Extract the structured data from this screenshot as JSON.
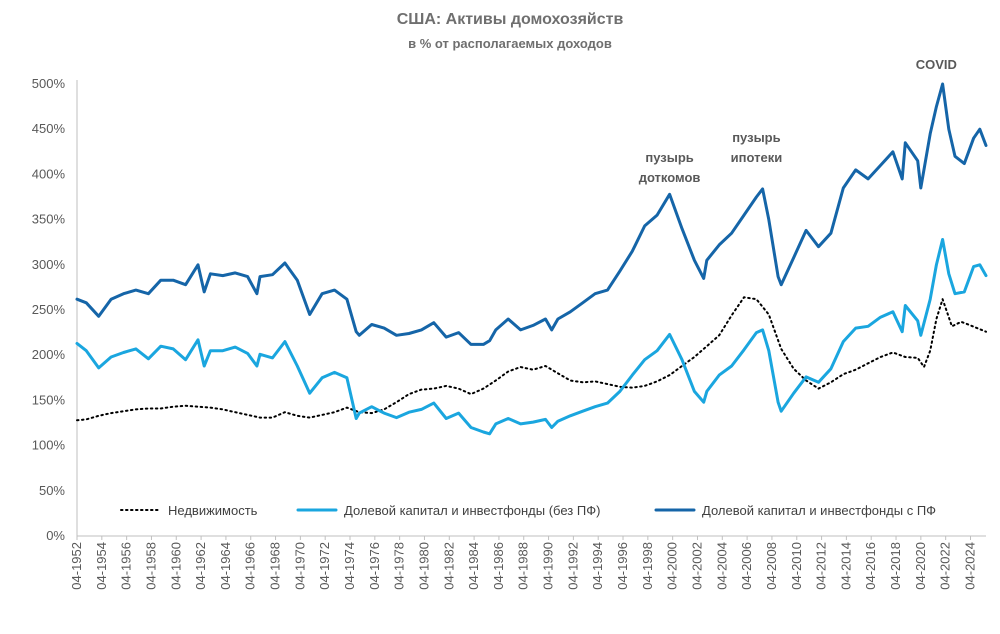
{
  "chart_data": {
    "type": "line",
    "title": "США: Активы домохозяйств",
    "subtitle": "в % от располагаемых доходов",
    "ylim": [
      0,
      500
    ],
    "yticks": [
      0,
      50,
      100,
      150,
      200,
      250,
      300,
      350,
      400,
      450,
      500
    ],
    "ytick_labels": [
      "0%",
      "50%",
      "100%",
      "150%",
      "200%",
      "250%",
      "300%",
      "350%",
      "400%",
      "450%",
      "500%"
    ],
    "xlim": [
      1952.25,
      2025.5
    ],
    "xtick_labels": [
      "04-1952",
      "04-1954",
      "04-1956",
      "04-1958",
      "04-1960",
      "04-1962",
      "04-1964",
      "04-1966",
      "04-1968",
      "04-1970",
      "04-1972",
      "04-1974",
      "04-1976",
      "04-1978",
      "04-1980",
      "04-1982",
      "04-1984",
      "04-1986",
      "04-1988",
      "04-1990",
      "04-1992",
      "04-1994",
      "04-1996",
      "04-1998",
      "04-2000",
      "04-2002",
      "04-2004",
      "04-2006",
      "04-2008",
      "04-2010",
      "04-2012",
      "04-2014",
      "04-2016",
      "04-2018",
      "04-2020",
      "04-2022",
      "04-2024"
    ],
    "legend": [
      "Недвижимость",
      "Долевой капитал и инвестфонды (без ПФ)",
      "Долевой капитал и инвестфонды с ПФ"
    ],
    "annotations": [
      {
        "text_lines": [
          "пузырь",
          "доткомов"
        ],
        "x": 2000.0
      },
      {
        "text_lines": [
          "пузырь",
          "ипотеки"
        ],
        "x": 2007.0
      },
      {
        "text_lines": [
          "COVID"
        ],
        "x": 2021.5
      }
    ],
    "series": [
      {
        "name": "Недвижимость",
        "color": "#000000",
        "style": "dotted",
        "points": [
          [
            1952.25,
            128
          ],
          [
            1953,
            129
          ],
          [
            1954,
            133
          ],
          [
            1955,
            136
          ],
          [
            1956,
            138
          ],
          [
            1957,
            140
          ],
          [
            1958,
            141
          ],
          [
            1959,
            141
          ],
          [
            1960,
            143
          ],
          [
            1961,
            144
          ],
          [
            1962,
            143
          ],
          [
            1963,
            142
          ],
          [
            1964,
            140
          ],
          [
            1965,
            137
          ],
          [
            1966,
            134
          ],
          [
            1967,
            131
          ],
          [
            1968,
            131
          ],
          [
            1969,
            137
          ],
          [
            1970,
            133
          ],
          [
            1971,
            131
          ],
          [
            1972,
            134
          ],
          [
            1973,
            137
          ],
          [
            1974,
            142
          ],
          [
            1975,
            137
          ],
          [
            1976,
            136
          ],
          [
            1977,
            140
          ],
          [
            1978,
            148
          ],
          [
            1979,
            157
          ],
          [
            1980,
            162
          ],
          [
            1981,
            163
          ],
          [
            1982,
            166
          ],
          [
            1983,
            163
          ],
          [
            1984,
            157
          ],
          [
            1985,
            163
          ],
          [
            1986,
            172
          ],
          [
            1987,
            182
          ],
          [
            1988,
            187
          ],
          [
            1989,
            184
          ],
          [
            1990,
            188
          ],
          [
            1991,
            180
          ],
          [
            1992,
            172
          ],
          [
            1993,
            170
          ],
          [
            1994,
            171
          ],
          [
            1995,
            168
          ],
          [
            1996,
            165
          ],
          [
            1997,
            164
          ],
          [
            1998,
            166
          ],
          [
            1999,
            171
          ],
          [
            2000,
            178
          ],
          [
            2001,
            188
          ],
          [
            2002,
            198
          ],
          [
            2003,
            210
          ],
          [
            2004,
            222
          ],
          [
            2005,
            244
          ],
          [
            2006,
            264
          ],
          [
            2007,
            262
          ],
          [
            2008,
            245
          ],
          [
            2009,
            207
          ],
          [
            2010,
            185
          ],
          [
            2011,
            172
          ],
          [
            2012,
            163
          ],
          [
            2013,
            170
          ],
          [
            2014,
            179
          ],
          [
            2015,
            184
          ],
          [
            2016,
            191
          ],
          [
            2017,
            198
          ],
          [
            2018,
            203
          ],
          [
            2019,
            198
          ],
          [
            2020,
            197
          ],
          [
            2020.5,
            187
          ],
          [
            2021,
            205
          ],
          [
            2021.5,
            240
          ],
          [
            2022,
            262
          ],
          [
            2022.75,
            232
          ],
          [
            2023.5,
            237
          ],
          [
            2024.25,
            233
          ],
          [
            2025.5,
            226
          ]
        ]
      },
      {
        "name": "Долевой капитал и инвестфонды (без ПФ)",
        "color": "#1aa6df",
        "style": "solid",
        "points": [
          [
            1952.25,
            213
          ],
          [
            1953,
            205
          ],
          [
            1954,
            186
          ],
          [
            1955,
            198
          ],
          [
            1956,
            203
          ],
          [
            1957,
            207
          ],
          [
            1958,
            196
          ],
          [
            1959,
            210
          ],
          [
            1960,
            207
          ],
          [
            1961,
            195
          ],
          [
            1962,
            217
          ],
          [
            1962.5,
            188
          ],
          [
            1963,
            205
          ],
          [
            1964,
            205
          ],
          [
            1965,
            209
          ],
          [
            1966,
            202
          ],
          [
            1966.75,
            188
          ],
          [
            1967,
            201
          ],
          [
            1968,
            197
          ],
          [
            1969,
            215
          ],
          [
            1970,
            188
          ],
          [
            1971,
            158
          ],
          [
            1972,
            175
          ],
          [
            1973,
            181
          ],
          [
            1974,
            175
          ],
          [
            1974.75,
            130
          ],
          [
            1975,
            136
          ],
          [
            1976,
            143
          ],
          [
            1977,
            136
          ],
          [
            1978,
            131
          ],
          [
            1979,
            137
          ],
          [
            1980,
            140
          ],
          [
            1981,
            147
          ],
          [
            1982,
            130
          ],
          [
            1983,
            136
          ],
          [
            1984,
            120
          ],
          [
            1985,
            115
          ],
          [
            1985.5,
            113
          ],
          [
            1986,
            124
          ],
          [
            1987,
            130
          ],
          [
            1988,
            124
          ],
          [
            1989,
            126
          ],
          [
            1990,
            129
          ],
          [
            1990.5,
            120
          ],
          [
            1991,
            127
          ],
          [
            1992,
            133
          ],
          [
            1993,
            138
          ],
          [
            1994,
            143
          ],
          [
            1995,
            147
          ],
          [
            1996,
            160
          ],
          [
            1997,
            178
          ],
          [
            1998,
            195
          ],
          [
            1999,
            205
          ],
          [
            2000,
            223
          ],
          [
            2001,
            195
          ],
          [
            2002,
            160
          ],
          [
            2002.75,
            148
          ],
          [
            2003,
            160
          ],
          [
            2004,
            178
          ],
          [
            2005,
            188
          ],
          [
            2006,
            206
          ],
          [
            2007,
            225
          ],
          [
            2007.5,
            228
          ],
          [
            2008,
            205
          ],
          [
            2008.75,
            148
          ],
          [
            2009,
            138
          ],
          [
            2010,
            158
          ],
          [
            2011,
            176
          ],
          [
            2012,
            170
          ],
          [
            2013,
            185
          ],
          [
            2014,
            215
          ],
          [
            2015,
            230
          ],
          [
            2016,
            232
          ],
          [
            2017,
            242
          ],
          [
            2018,
            248
          ],
          [
            2018.75,
            226
          ],
          [
            2019,
            255
          ],
          [
            2020,
            238
          ],
          [
            2020.25,
            222
          ],
          [
            2021,
            262
          ],
          [
            2021.5,
            300
          ],
          [
            2022,
            328
          ],
          [
            2022.5,
            290
          ],
          [
            2023,
            268
          ],
          [
            2023.75,
            270
          ],
          [
            2024.5,
            298
          ],
          [
            2025,
            300
          ],
          [
            2025.5,
            288
          ]
        ]
      },
      {
        "name": "Долевой капитал и инвестфонды с ПФ",
        "color": "#1565a8",
        "style": "solid",
        "points": [
          [
            1952.25,
            262
          ],
          [
            1953,
            258
          ],
          [
            1954,
            243
          ],
          [
            1955,
            262
          ],
          [
            1956,
            268
          ],
          [
            1957,
            272
          ],
          [
            1958,
            268
          ],
          [
            1959,
            283
          ],
          [
            1960,
            283
          ],
          [
            1961,
            278
          ],
          [
            1962,
            300
          ],
          [
            1962.5,
            270
          ],
          [
            1963,
            290
          ],
          [
            1964,
            288
          ],
          [
            1965,
            291
          ],
          [
            1966,
            287
          ],
          [
            1966.75,
            268
          ],
          [
            1967,
            287
          ],
          [
            1968,
            289
          ],
          [
            1969,
            302
          ],
          [
            1970,
            283
          ],
          [
            1971,
            245
          ],
          [
            1972,
            268
          ],
          [
            1973,
            272
          ],
          [
            1974,
            262
          ],
          [
            1974.75,
            226
          ],
          [
            1975,
            222
          ],
          [
            1976,
            234
          ],
          [
            1977,
            230
          ],
          [
            1978,
            222
          ],
          [
            1979,
            224
          ],
          [
            1980,
            228
          ],
          [
            1981,
            236
          ],
          [
            1982,
            220
          ],
          [
            1983,
            225
          ],
          [
            1984,
            212
          ],
          [
            1985,
            212
          ],
          [
            1985.5,
            216
          ],
          [
            1986,
            228
          ],
          [
            1987,
            240
          ],
          [
            1988,
            228
          ],
          [
            1989,
            233
          ],
          [
            1990,
            240
          ],
          [
            1990.5,
            228
          ],
          [
            1991,
            240
          ],
          [
            1992,
            248
          ],
          [
            1993,
            258
          ],
          [
            1994,
            268
          ],
          [
            1995,
            272
          ],
          [
            1996,
            293
          ],
          [
            1997,
            315
          ],
          [
            1998,
            343
          ],
          [
            1999,
            355
          ],
          [
            2000,
            378
          ],
          [
            2001,
            340
          ],
          [
            2002,
            305
          ],
          [
            2002.75,
            285
          ],
          [
            2003,
            305
          ],
          [
            2004,
            322
          ],
          [
            2005,
            335
          ],
          [
            2006,
            355
          ],
          [
            2007,
            375
          ],
          [
            2007.5,
            384
          ],
          [
            2008,
            350
          ],
          [
            2008.75,
            287
          ],
          [
            2009,
            278
          ],
          [
            2010,
            308
          ],
          [
            2011,
            338
          ],
          [
            2012,
            320
          ],
          [
            2013,
            335
          ],
          [
            2014,
            385
          ],
          [
            2015,
            405
          ],
          [
            2016,
            395
          ],
          [
            2017,
            410
          ],
          [
            2018,
            425
          ],
          [
            2018.75,
            395
          ],
          [
            2019,
            435
          ],
          [
            2020,
            415
          ],
          [
            2020.25,
            385
          ],
          [
            2021,
            445
          ],
          [
            2021.5,
            475
          ],
          [
            2022,
            500
          ],
          [
            2022.5,
            450
          ],
          [
            2023,
            420
          ],
          [
            2023.75,
            412
          ],
          [
            2024.5,
            440
          ],
          [
            2025,
            450
          ],
          [
            2025.5,
            432
          ]
        ]
      }
    ]
  }
}
